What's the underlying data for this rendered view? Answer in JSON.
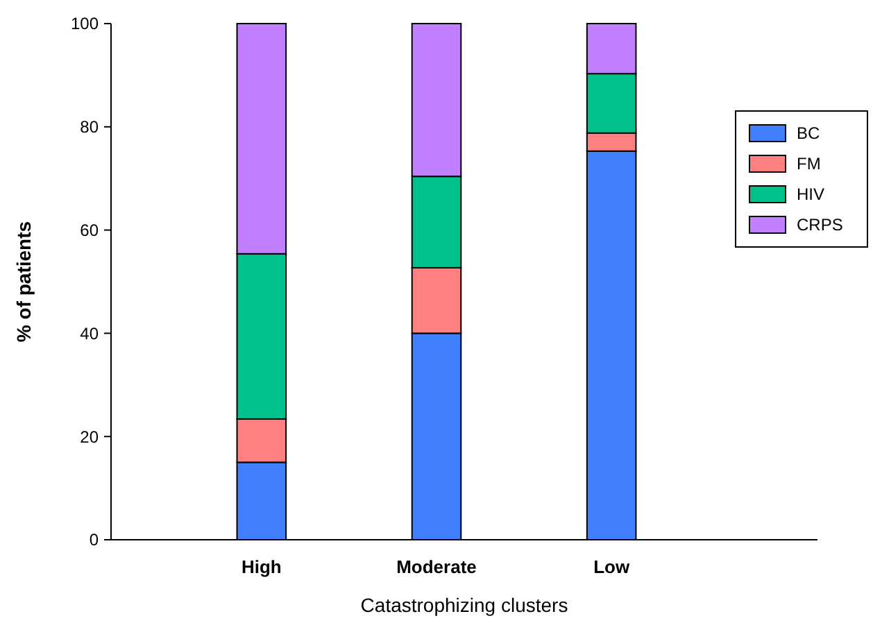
{
  "chart_data": {
    "type": "bar",
    "stacked": true,
    "xlabel": "Catastrophizing clusters",
    "ylabel": "% of patients",
    "categories": [
      "High",
      "Moderate",
      "Low"
    ],
    "series": [
      {
        "name": "BC",
        "color": "#4080ff",
        "values": [
          15,
          40,
          75.3
        ]
      },
      {
        "name": "FM",
        "color": "#ff8080",
        "values": [
          8.4,
          12.7,
          3.5
        ]
      },
      {
        "name": "HIV",
        "color": "#00c08c",
        "values": [
          32,
          17.7,
          11.5
        ]
      },
      {
        "name": "CRPS",
        "color": "#c080ff",
        "values": [
          44.6,
          29.6,
          9.7
        ]
      }
    ],
    "ylim": [
      0,
      100
    ],
    "yticks": [
      0,
      20,
      40,
      60,
      80,
      100
    ],
    "legend": "right",
    "grid": false
  }
}
